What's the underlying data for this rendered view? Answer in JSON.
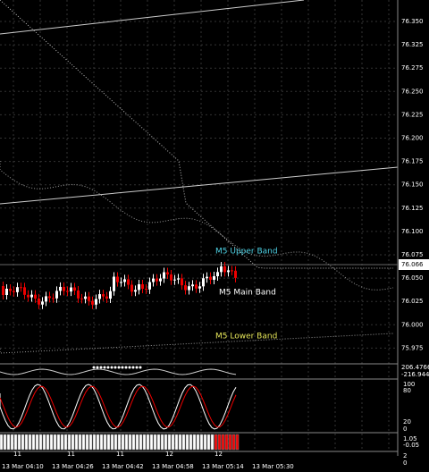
{
  "price_axis": {
    "labels": [
      "76.350",
      "76.325",
      "76.275",
      "76.250",
      "76.225",
      "76.200",
      "76.175",
      "76.150",
      "76.125",
      "76.100",
      "76.075",
      "76.050",
      "76.025",
      "76.000",
      "75.975"
    ],
    "current": "76.066"
  },
  "bands": {
    "upper": "M5 Upper Band",
    "main": "M5 Main Band",
    "lower": "M5 Lower Band"
  },
  "oscillator": {
    "labels": [
      "206.4766",
      "-216.944"
    ]
  },
  "stochastic": {
    "labels": [
      "100",
      "80",
      "20",
      "0"
    ]
  },
  "histogram": {
    "labels": [
      "1.05",
      "-0.05"
    ]
  },
  "day_marks": [
    "11",
    "11",
    "11",
    "12",
    "12"
  ],
  "time_axis": {
    "labels": [
      "13 Mar 04:10",
      "13 Mar 04:26",
      "13 Mar 04:42",
      "13 Mar 04:58",
      "13 Mar 05:14",
      "13 Mar 05:30"
    ]
  },
  "corner": [
    "2",
    "0"
  ]
}
